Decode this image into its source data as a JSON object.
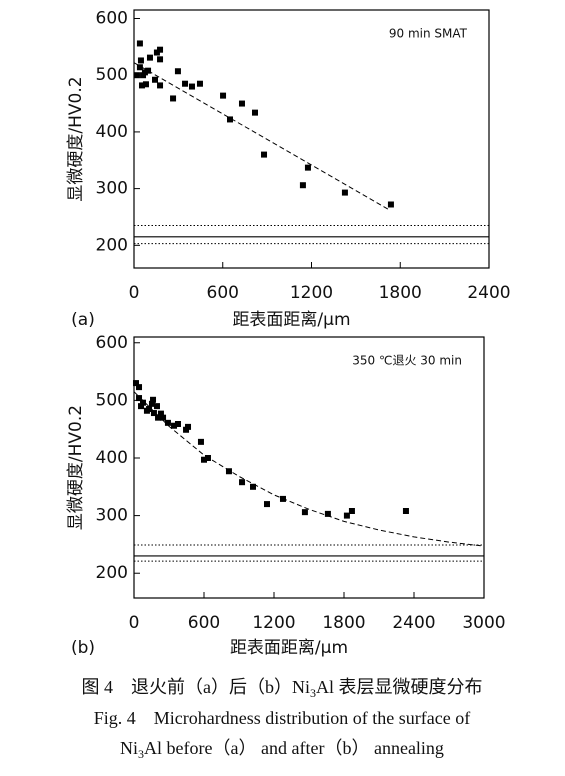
{
  "chart_data": [
    {
      "type": "scatter",
      "panel_label": "(a)",
      "annotation": "90 min SMAT",
      "xlabel": "距表面距离/μm",
      "ylabel": "显微硬度/HV0.2",
      "xlim": [
        0,
        2400
      ],
      "xticks": [
        0,
        600,
        1200,
        1800,
        2400
      ],
      "ylim": [
        160,
        615
      ],
      "yticks": [
        200,
        300,
        400,
        500,
        600
      ],
      "color": "#000000",
      "points": {
        "x": [
          20,
          40,
          47,
          40,
          61,
          81,
          54,
          74,
          108,
          95,
          142,
          176,
          155,
          176,
          176,
          297,
          345,
          392,
          446,
          264,
          602,
          649,
          730,
          818,
          879,
          1142,
          1176,
          1426,
          1737
        ],
        "y": [
          500,
          556,
          526,
          514,
          500,
          484,
          482,
          505,
          531,
          508,
          492,
          545,
          540,
          528,
          482,
          507,
          485,
          480,
          485,
          459,
          464,
          422,
          450,
          434,
          360,
          306,
          337,
          293,
          272
        ]
      },
      "fit": {
        "x": [
          0,
          1730
        ],
        "y": [
          522,
          262
        ]
      },
      "reference_lines": [
        {
          "value": 235,
          "style": "dotted"
        },
        {
          "value": 215,
          "style": "solid"
        },
        {
          "value": 203,
          "style": "dotted"
        }
      ]
    },
    {
      "type": "scatter",
      "panel_label": "(b)",
      "annotation": "350 ℃退火 30 min",
      "xlabel": "距表面距离/μm",
      "ylabel": "显微硬度/HV0.2",
      "xlim": [
        0,
        3000
      ],
      "xticks": [
        0,
        600,
        1200,
        1800,
        2400,
        3000
      ],
      "ylim": [
        157,
        610
      ],
      "yticks": [
        200,
        300,
        400,
        500,
        600
      ],
      "color": "#000000",
      "points": {
        "x": [
          17,
          43,
          43,
          77,
          60,
          111,
          129,
          154,
          197,
          171,
          231,
          206,
          249,
          291,
          163,
          343,
          377,
          446,
          463,
          574,
          600,
          634,
          814,
          926,
          1020,
          1140,
          1277,
          1465,
          1662,
          1825,
          1868,
          2331
        ],
        "y": [
          530,
          523,
          504,
          496,
          490,
          482,
          485,
          494,
          490,
          478,
          477,
          470,
          470,
          461,
          501,
          456,
          459,
          449,
          454,
          428,
          397,
          400,
          377,
          358,
          350,
          320,
          329,
          306,
          303,
          300,
          308,
          308
        ]
      },
      "fit": {
        "x": [
          0,
          300,
          600,
          900,
          1200,
          1500,
          1800,
          2100,
          2400,
          2700,
          3000
        ],
        "y": [
          515,
          455,
          405,
          368,
          336,
          311,
          290,
          275,
          263,
          254,
          247
        ]
      },
      "reference_lines": [
        {
          "value": 249,
          "style": "dotted"
        },
        {
          "value": 230,
          "style": "solid"
        },
        {
          "value": 221,
          "style": "dotted"
        }
      ]
    }
  ],
  "caption": {
    "cn": [
      "图 4　退火前（a）后（b）Ni",
      "3",
      "Al 表层显微硬度分布"
    ],
    "en1": "Fig. 4　Microhardness distribution of the surface of",
    "en2": [
      "Ni",
      "3",
      "Al before（a） and after（b） annealing"
    ]
  }
}
